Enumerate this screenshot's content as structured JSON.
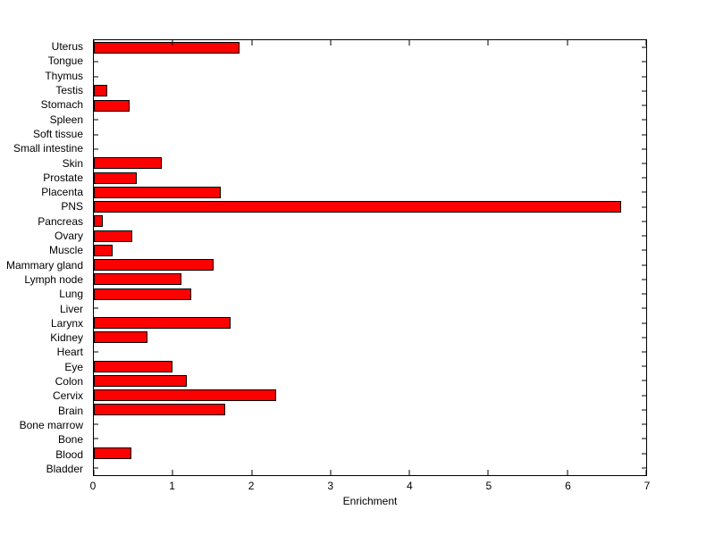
{
  "chart_data": {
    "type": "bar",
    "orientation": "horizontal",
    "title": "",
    "xlabel": "Enrichment",
    "ylabel": "",
    "xlim": [
      0,
      7
    ],
    "xticks": [
      0,
      1,
      2,
      3,
      4,
      5,
      6,
      7
    ],
    "grid": false,
    "legend": false,
    "bar_color": "#ff0000",
    "bar_edge_color": "#000000",
    "axis_color": "#000000",
    "background_color": "#ffffff",
    "categories": [
      "Uterus",
      "Tongue",
      "Thymus",
      "Testis",
      "Stomach",
      "Spleen",
      "Soft tissue",
      "Small intestine",
      "Skin",
      "Prostate",
      "Placenta",
      "PNS",
      "Pancreas",
      "Ovary",
      "Muscle",
      "Mammary gland",
      "Lymph node",
      "Lung",
      "Liver",
      "Larynx",
      "Kidney",
      "Heart",
      "Eye",
      "Colon",
      "Cervix",
      "Brain",
      "Bone marrow",
      "Bone",
      "Blood",
      "Bladder"
    ],
    "values": [
      1.85,
      0,
      0,
      0.17,
      0.45,
      0,
      0,
      0,
      0.86,
      0.54,
      1.61,
      6.68,
      0.11,
      0.49,
      0.24,
      1.52,
      1.11,
      1.24,
      0,
      1.73,
      0.68,
      0,
      1.0,
      1.18,
      2.31,
      1.67,
      0,
      0,
      0.48,
      0
    ]
  }
}
